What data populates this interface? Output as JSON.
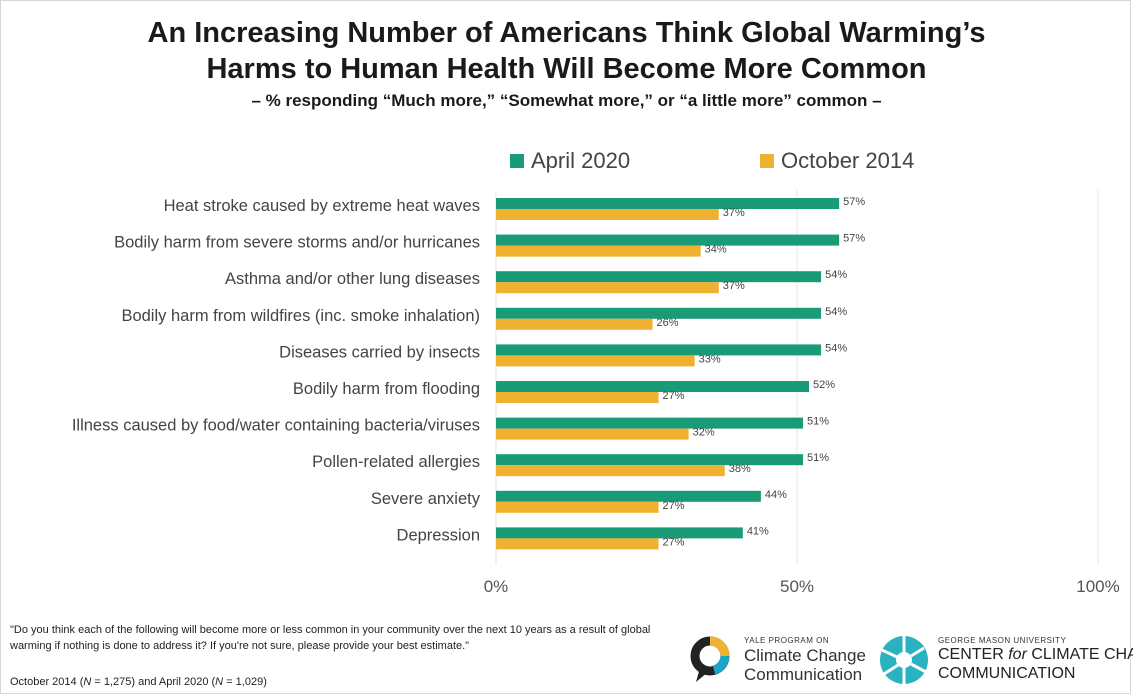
{
  "header": {
    "title_line1": "An Increasing Number of Americans Think Global Warming’s",
    "title_line2": "Harms to Human Health Will Become More Common",
    "subtitle": "– % responding “Much more,” “Somewhat more,” or “a little more” common –"
  },
  "colors": {
    "april_2020": "#1a9b78",
    "october_2014": "#f0b130",
    "grid": "#e6e6e6"
  },
  "chart_data": {
    "type": "bar",
    "orientation": "horizontal",
    "categories": [
      "Heat stroke caused by extreme heat waves",
      "Bodily harm from severe storms and/or hurricanes",
      "Asthma and/or other lung diseases",
      "Bodily harm from wildfires (inc. smoke inhalation)",
      "Diseases carried by insects",
      "Bodily harm from flooding",
      "Illness caused by food/water containing bacteria/viruses",
      "Pollen-related allergies",
      "Severe anxiety",
      "Depression"
    ],
    "series": [
      {
        "name": "April 2020",
        "values": [
          57,
          57,
          54,
          54,
          54,
          52,
          51,
          51,
          44,
          41
        ]
      },
      {
        "name": "October 2014",
        "values": [
          37,
          34,
          37,
          26,
          33,
          27,
          32,
          38,
          27,
          27
        ]
      }
    ],
    "xlim": [
      0,
      100
    ],
    "xticks": [
      "0%",
      "50%",
      "100%"
    ],
    "value_suffix": "%",
    "legend_position": "top",
    "grid": true
  },
  "footer": {
    "question": "\"Do you think each of the following will become more or less common in your community over the next 10 years as a result of global warming if nothing is done to address it? If you're not sure, please provide your best estimate.\"",
    "sample": "October 2014 (N = 1,275) and April 2020 (N = 1,029)"
  },
  "logos": {
    "yale_small": "YALE PROGRAM ON",
    "yale_line1": "Climate Change",
    "yale_line2": "Communication",
    "gmu_small": "GEORGE MASON UNIVERSITY",
    "gmu_line1_a": "CENTER ",
    "gmu_line1_b": "for",
    "gmu_line1_c": " CLIMATE CHANGE",
    "gmu_line2": "COMMUNICATION"
  }
}
